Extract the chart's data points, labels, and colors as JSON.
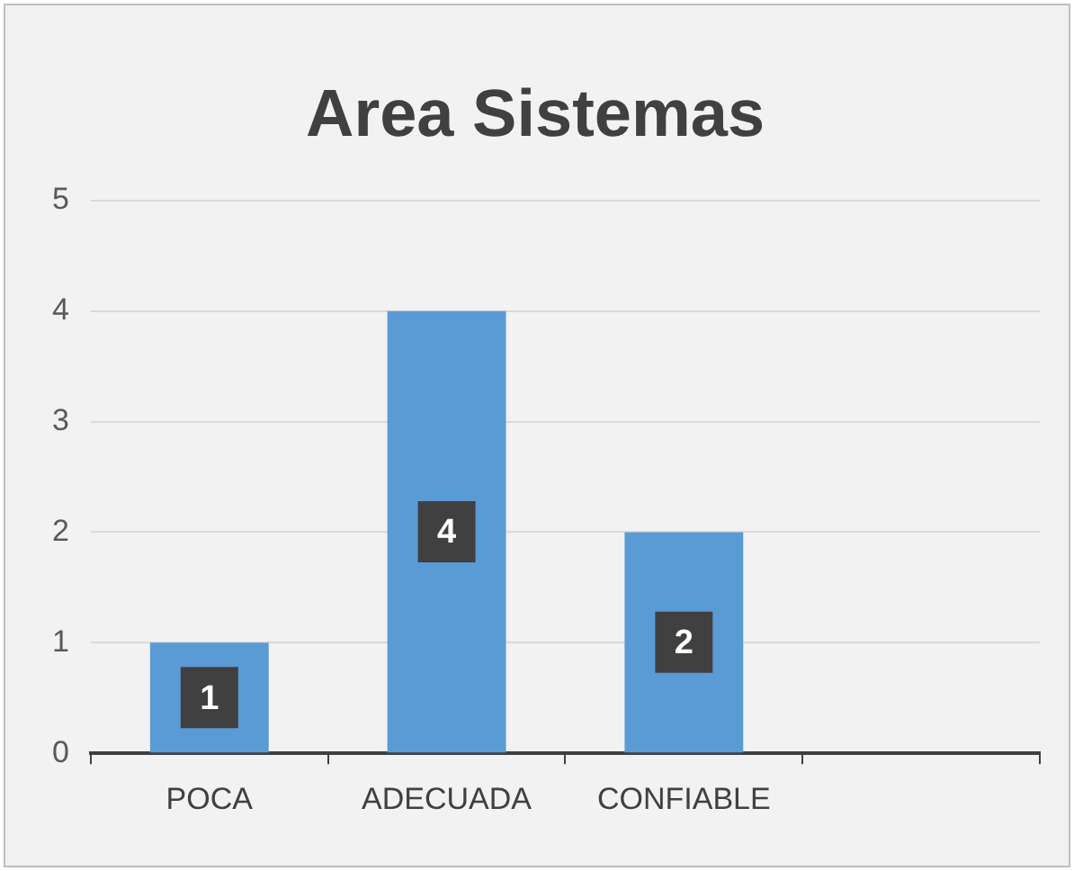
{
  "chart_data": {
    "type": "bar",
    "title": "Area Sistemas",
    "categories": [
      "POCA",
      "ADECUADA",
      "CONFIABLE",
      null
    ],
    "values": [
      1,
      4,
      2,
      null
    ],
    "color": "#5b9bd5",
    "ylim": [
      0,
      5
    ],
    "yticks": [
      0,
      1,
      2,
      3,
      4,
      5
    ],
    "grid": "y",
    "data_labels": true,
    "legend": false
  }
}
